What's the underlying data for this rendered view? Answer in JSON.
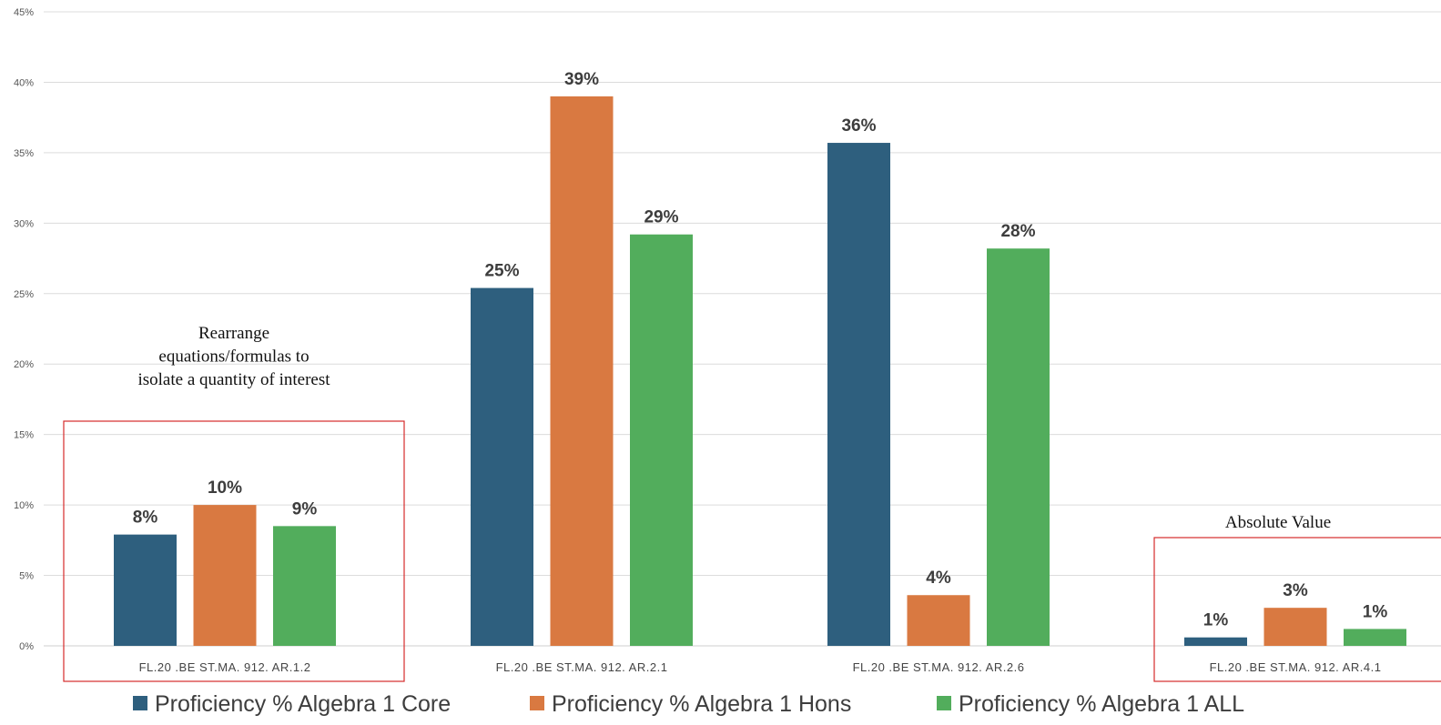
{
  "chart_data": {
    "type": "bar",
    "categories": [
      "FL.20 .BE ST.MA. 912. AR.1.2",
      "FL.20 .BE ST.MA. 912. AR.2.1",
      "FL.20 .BE ST.MA. 912. AR.2.6",
      "FL.20 .BE ST.MA. 912. AR.4.1"
    ],
    "series": [
      {
        "name": "Proficiency % Algebra 1 Core",
        "color": "#2e5f7e",
        "values": [
          7.9,
          25.4,
          35.7,
          0.6
        ],
        "labels": [
          "8%",
          "25%",
          "36%",
          "1%"
        ]
      },
      {
        "name": "Proficiency %  Algebra 1 Hons",
        "color": "#d97941",
        "values": [
          10.0,
          39.0,
          3.6,
          2.7
        ],
        "labels": [
          "10%",
          "39%",
          "4%",
          "3%"
        ]
      },
      {
        "name": "Proficiency % Algebra 1 ALL",
        "color": "#52ad5c",
        "values": [
          8.5,
          29.2,
          28.2,
          1.2
        ],
        "labels": [
          "9%",
          "29%",
          "28%",
          "1%"
        ]
      }
    ],
    "ylim": [
      0,
      45
    ],
    "yticks": [
      0,
      5,
      10,
      15,
      20,
      25,
      30,
      35,
      40,
      45
    ],
    "ytick_labels": [
      "0%",
      "5%",
      "10%",
      "15%",
      "20%",
      "25%",
      "30%",
      "35%",
      "40%",
      "45%"
    ],
    "grid": true,
    "legend": "bottom",
    "annotations": [
      {
        "category_index": 0,
        "lines": [
          "Rearrange",
          "equations/formulas to",
          "isolate a quantity of interest"
        ]
      },
      {
        "category_index": 3,
        "lines": [
          "Absolute Value"
        ]
      }
    ],
    "highlight_color": "#d62b2b"
  }
}
